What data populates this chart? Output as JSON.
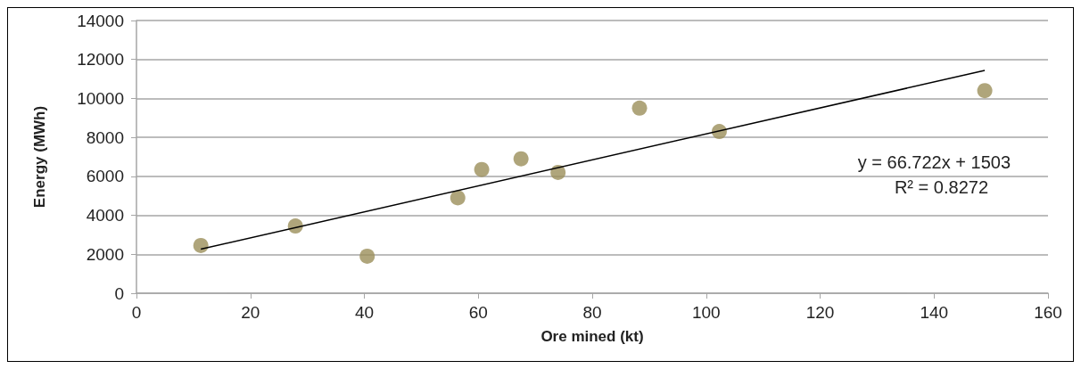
{
  "chart_data": {
    "type": "scatter",
    "xlabel": "Ore mined (kt)",
    "ylabel": "Energy (MWh)",
    "xlim": [
      0,
      160
    ],
    "xticks": [
      0,
      20,
      40,
      60,
      80,
      100,
      120,
      140,
      160
    ],
    "ylim": [
      0,
      14000
    ],
    "yticks": [
      0,
      2000,
      4000,
      6000,
      8000,
      10000,
      12000,
      14000
    ],
    "grid": "y",
    "marker": "circle",
    "annotations": [
      "y = 66.722x + 1503",
      "R² = 0.8272"
    ],
    "series": [
      {
        "color": "#9b8f5a",
        "x": [
          11.3,
          27.9,
          40.5,
          56.4,
          60.6,
          67.5,
          74,
          88.3,
          102.3,
          148.9
        ],
        "values": [
          2450,
          3450,
          1900,
          4900,
          6350,
          6900,
          6200,
          9500,
          8300,
          10400
        ]
      },
      {
        "type": "line",
        "marker": "none",
        "color": "#000000",
        "x": [
          11.3,
          148.9
        ],
        "values": [
          2260,
          11440
        ]
      }
    ]
  }
}
